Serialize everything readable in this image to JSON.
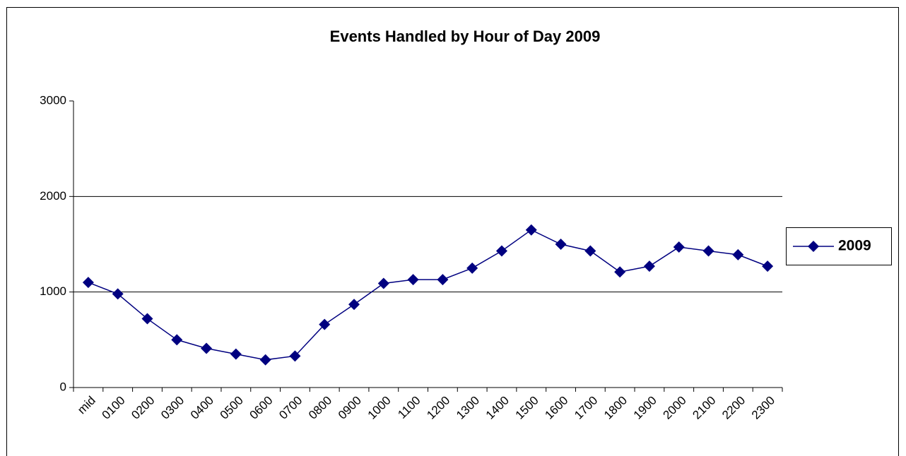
{
  "chart_data": {
    "type": "line",
    "title": "Events Handled by Hour of Day 2009",
    "categories": [
      "mid",
      "0100",
      "0200",
      "0300",
      "0400",
      "0500",
      "0600",
      "0700",
      "0800",
      "0900",
      "1000",
      "1100",
      "1200",
      "1300",
      "1400",
      "1500",
      "1600",
      "1700",
      "1800",
      "1900",
      "2000",
      "2100",
      "2200",
      "2300"
    ],
    "series": [
      {
        "name": "2009",
        "color": "#000080",
        "values": [
          1100,
          980,
          720,
          500,
          410,
          350,
          290,
          330,
          660,
          870,
          1090,
          1130,
          1130,
          1250,
          1430,
          1650,
          1500,
          1430,
          1210,
          1270,
          1470,
          1430,
          1390,
          1270
        ]
      }
    ],
    "ylim": [
      0,
      3000
    ],
    "yticks": [
      0,
      1000,
      2000,
      3000
    ],
    "grid": true,
    "legend": "right"
  }
}
